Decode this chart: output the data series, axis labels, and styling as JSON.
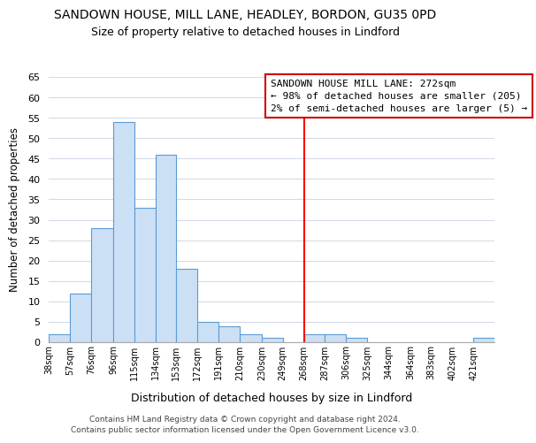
{
  "title": "SANDOWN HOUSE, MILL LANE, HEADLEY, BORDON, GU35 0PD",
  "subtitle": "Size of property relative to detached houses in Lindford",
  "xlabel": "Distribution of detached houses by size in Lindford",
  "ylabel": "Number of detached properties",
  "bin_labels": [
    "38sqm",
    "57sqm",
    "76sqm",
    "96sqm",
    "115sqm",
    "134sqm",
    "153sqm",
    "172sqm",
    "191sqm",
    "210sqm",
    "230sqm",
    "249sqm",
    "268sqm",
    "287sqm",
    "306sqm",
    "325sqm",
    "344sqm",
    "364sqm",
    "383sqm",
    "402sqm",
    "421sqm"
  ],
  "bin_edges": [
    38,
    57,
    76,
    96,
    115,
    134,
    153,
    172,
    191,
    210,
    230,
    249,
    268,
    287,
    306,
    325,
    344,
    364,
    383,
    402,
    421,
    440
  ],
  "counts": [
    2,
    12,
    28,
    54,
    33,
    46,
    18,
    5,
    4,
    2,
    1,
    0,
    2,
    2,
    1,
    0,
    0,
    0,
    0,
    0,
    1
  ],
  "bar_color": "#cce0f5",
  "bar_edgecolor": "#5b9bd5",
  "vline_x": 268,
  "vline_color": "red",
  "annotation_title": "SANDOWN HOUSE MILL LANE: 272sqm",
  "annotation_line1": "← 98% of detached houses are smaller (205)",
  "annotation_line2": "2% of semi-detached houses are larger (5) →",
  "annotation_box_color": "#ffffff",
  "annotation_box_edgecolor": "#cc0000",
  "ylim": [
    0,
    65
  ],
  "yticks": [
    0,
    5,
    10,
    15,
    20,
    25,
    30,
    35,
    40,
    45,
    50,
    55,
    60,
    65
  ],
  "footer1": "Contains HM Land Registry data © Crown copyright and database right 2024.",
  "footer2": "Contains public sector information licensed under the Open Government Licence v3.0.",
  "bg_color": "#ffffff",
  "grid_color": "#d0d8e4"
}
